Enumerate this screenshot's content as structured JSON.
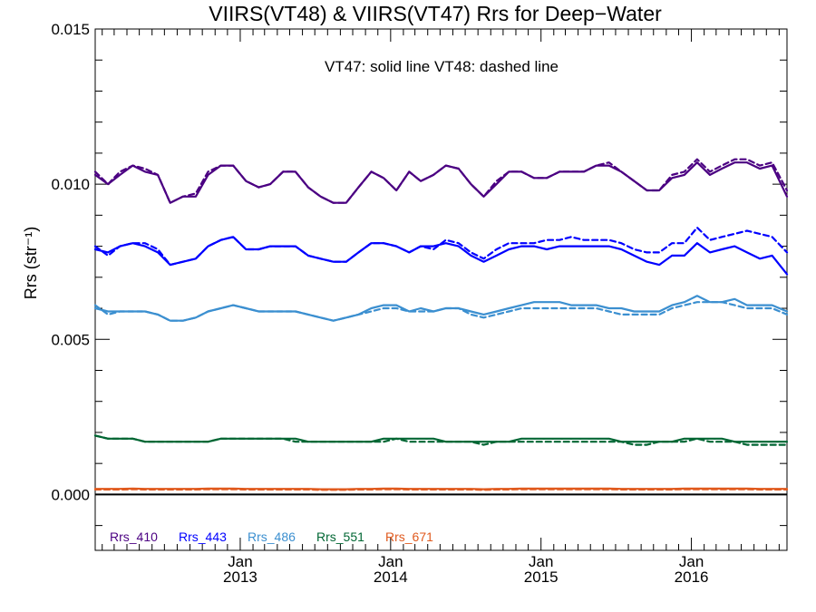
{
  "chart_data": {
    "type": "line",
    "title": "VIIRS(VT48) & VIIRS(VT47)  Rrs for Deep−Water",
    "annotation": "VT47: solid line   VT48: dashed line",
    "ylabel": "Rrs (str⁻¹)",
    "xlabel": "",
    "ylim": [
      -0.0018,
      0.015
    ],
    "yticks": [
      0.0,
      0.005,
      0.01,
      0.015
    ],
    "ytick_labels": [
      "0.000",
      "0.005",
      "0.010",
      "0.015"
    ],
    "xlim": [
      "2012-01-15",
      "2016-08-20"
    ],
    "xticks": [
      "2013-01-01",
      "2014-01-01",
      "2015-01-01",
      "2016-01-01"
    ],
    "xtick_labels": [
      [
        "Jan",
        "2013"
      ],
      [
        "Jan",
        "2014"
      ],
      [
        "Jan",
        "2015"
      ],
      [
        "Jan",
        "2016"
      ]
    ],
    "zero_line": true,
    "legend_position": "bottom-left",
    "x": [
      "2012-01-15",
      "2012-02-15",
      "2012-03-15",
      "2012-04-15",
      "2012-05-15",
      "2012-06-15",
      "2012-07-15",
      "2012-08-15",
      "2012-09-15",
      "2012-10-15",
      "2012-11-15",
      "2012-12-15",
      "2013-01-15",
      "2013-02-15",
      "2013-03-15",
      "2013-04-15",
      "2013-05-15",
      "2013-06-15",
      "2013-07-15",
      "2013-08-15",
      "2013-09-15",
      "2013-10-15",
      "2013-11-15",
      "2013-12-15",
      "2014-01-15",
      "2014-02-15",
      "2014-03-15",
      "2014-04-15",
      "2014-05-15",
      "2014-06-15",
      "2014-07-15",
      "2014-08-15",
      "2014-09-15",
      "2014-10-15",
      "2014-11-15",
      "2014-12-15",
      "2015-01-15",
      "2015-02-15",
      "2015-03-15",
      "2015-04-15",
      "2015-05-15",
      "2015-06-15",
      "2015-07-15",
      "2015-08-15",
      "2015-09-15",
      "2015-10-15",
      "2015-11-15",
      "2015-12-15",
      "2016-01-15",
      "2016-02-15",
      "2016-03-15",
      "2016-04-15",
      "2016-05-15",
      "2016-06-15",
      "2016-07-15",
      "2016-08-20"
    ],
    "series": [
      {
        "name": "Rrs_410",
        "color": "#4b0082",
        "VT47": [
          0.0103,
          0.01,
          0.0103,
          0.0106,
          0.0104,
          0.0103,
          0.0094,
          0.0096,
          0.0096,
          0.0103,
          0.0106,
          0.0106,
          0.0101,
          0.0099,
          0.01,
          0.0104,
          0.0104,
          0.0099,
          0.0096,
          0.0094,
          0.0094,
          0.0099,
          0.0104,
          0.0102,
          0.0098,
          0.0104,
          0.0101,
          0.0103,
          0.0106,
          0.0105,
          0.01,
          0.0096,
          0.01,
          0.0104,
          0.0104,
          0.0102,
          0.0102,
          0.0104,
          0.0104,
          0.0104,
          0.0106,
          0.0106,
          0.0104,
          0.0101,
          0.0098,
          0.0098,
          0.0102,
          0.0103,
          0.0107,
          0.0103,
          0.0105,
          0.0107,
          0.0107,
          0.0105,
          0.0106,
          0.0096
        ],
        "VT48": [
          0.0104,
          0.01,
          0.0104,
          0.0106,
          0.0105,
          0.0103,
          0.0094,
          0.0096,
          0.0097,
          0.0104,
          0.0106,
          0.0106,
          0.0101,
          0.0099,
          0.01,
          0.0104,
          0.0104,
          0.0099,
          0.0096,
          0.0094,
          0.0094,
          0.0099,
          0.0104,
          0.0102,
          0.0098,
          0.0104,
          0.0101,
          0.0103,
          0.0106,
          0.0105,
          0.01,
          0.0096,
          0.0101,
          0.0104,
          0.0104,
          0.0102,
          0.0102,
          0.0104,
          0.0104,
          0.0104,
          0.0106,
          0.0107,
          0.0104,
          0.0101,
          0.0098,
          0.0098,
          0.0103,
          0.0104,
          0.0108,
          0.0104,
          0.0106,
          0.0108,
          0.0108,
          0.0106,
          0.0107,
          0.0098
        ]
      },
      {
        "name": "Rrs_443",
        "color": "#0000ff",
        "VT47": [
          0.0079,
          0.0078,
          0.008,
          0.0081,
          0.008,
          0.0078,
          0.0074,
          0.0075,
          0.0076,
          0.008,
          0.0082,
          0.0083,
          0.0079,
          0.0079,
          0.008,
          0.008,
          0.008,
          0.0077,
          0.0076,
          0.0075,
          0.0075,
          0.0078,
          0.0081,
          0.0081,
          0.008,
          0.0078,
          0.008,
          0.008,
          0.0081,
          0.008,
          0.0077,
          0.0075,
          0.0077,
          0.0079,
          0.008,
          0.008,
          0.0079,
          0.008,
          0.008,
          0.008,
          0.008,
          0.008,
          0.0079,
          0.0077,
          0.0075,
          0.0074,
          0.0077,
          0.0077,
          0.0081,
          0.0078,
          0.0079,
          0.008,
          0.0078,
          0.0076,
          0.0077,
          0.0071
        ],
        "VT48": [
          0.008,
          0.0077,
          0.008,
          0.0081,
          0.0081,
          0.0079,
          0.0074,
          0.0075,
          0.0076,
          0.008,
          0.0082,
          0.0083,
          0.0079,
          0.0079,
          0.008,
          0.008,
          0.008,
          0.0077,
          0.0076,
          0.0075,
          0.0075,
          0.0078,
          0.0081,
          0.0081,
          0.008,
          0.0078,
          0.008,
          0.0079,
          0.0082,
          0.0081,
          0.0078,
          0.0076,
          0.0079,
          0.0081,
          0.0081,
          0.0081,
          0.0082,
          0.0082,
          0.0083,
          0.0082,
          0.0082,
          0.0082,
          0.0081,
          0.0079,
          0.0078,
          0.0078,
          0.0081,
          0.0081,
          0.0086,
          0.0082,
          0.0083,
          0.0084,
          0.0085,
          0.0084,
          0.0083,
          0.0078
        ]
      },
      {
        "name": "Rrs_486",
        "color": "#3b8fd0",
        "VT47": [
          0.006,
          0.0059,
          0.0059,
          0.0059,
          0.0059,
          0.0058,
          0.0056,
          0.0056,
          0.0057,
          0.0059,
          0.006,
          0.0061,
          0.006,
          0.0059,
          0.0059,
          0.0059,
          0.0059,
          0.0058,
          0.0057,
          0.0056,
          0.0057,
          0.0058,
          0.006,
          0.0061,
          0.0061,
          0.0059,
          0.006,
          0.0059,
          0.006,
          0.006,
          0.0059,
          0.0058,
          0.0059,
          0.006,
          0.0061,
          0.0062,
          0.0062,
          0.0062,
          0.0061,
          0.0061,
          0.0061,
          0.006,
          0.006,
          0.0059,
          0.0059,
          0.0059,
          0.0061,
          0.0062,
          0.0064,
          0.0062,
          0.0062,
          0.0063,
          0.0061,
          0.0061,
          0.0061,
          0.0059
        ],
        "VT48": [
          0.0061,
          0.0058,
          0.0059,
          0.0059,
          0.0059,
          0.0058,
          0.0056,
          0.0056,
          0.0057,
          0.0059,
          0.006,
          0.0061,
          0.006,
          0.0059,
          0.0059,
          0.0059,
          0.0059,
          0.0058,
          0.0057,
          0.0056,
          0.0057,
          0.0058,
          0.0059,
          0.006,
          0.006,
          0.0059,
          0.0059,
          0.0059,
          0.006,
          0.006,
          0.0058,
          0.0057,
          0.0058,
          0.0059,
          0.006,
          0.006,
          0.006,
          0.006,
          0.006,
          0.006,
          0.006,
          0.0059,
          0.0058,
          0.0058,
          0.0058,
          0.0058,
          0.006,
          0.0061,
          0.0062,
          0.0062,
          0.0062,
          0.0061,
          0.006,
          0.006,
          0.006,
          0.0058
        ]
      },
      {
        "name": "Rrs_551",
        "color": "#006633",
        "VT47": [
          0.0019,
          0.0018,
          0.0018,
          0.0018,
          0.0017,
          0.0017,
          0.0017,
          0.0017,
          0.0017,
          0.0017,
          0.0018,
          0.0018,
          0.0018,
          0.0018,
          0.0018,
          0.0018,
          0.0018,
          0.0017,
          0.0017,
          0.0017,
          0.0017,
          0.0017,
          0.0017,
          0.0018,
          0.0018,
          0.0018,
          0.0018,
          0.0018,
          0.0017,
          0.0017,
          0.0017,
          0.0017,
          0.0017,
          0.0017,
          0.0018,
          0.0018,
          0.0018,
          0.0018,
          0.0018,
          0.0018,
          0.0018,
          0.0018,
          0.0017,
          0.0017,
          0.0017,
          0.0017,
          0.0017,
          0.0018,
          0.0018,
          0.0018,
          0.0018,
          0.0017,
          0.0017,
          0.0017,
          0.0017,
          0.0017
        ],
        "VT48": [
          0.0019,
          0.0018,
          0.0018,
          0.0018,
          0.0017,
          0.0017,
          0.0017,
          0.0017,
          0.0017,
          0.0017,
          0.0018,
          0.0018,
          0.0018,
          0.0018,
          0.0018,
          0.0018,
          0.0017,
          0.0017,
          0.0017,
          0.0017,
          0.0017,
          0.0017,
          0.0017,
          0.0017,
          0.0018,
          0.0017,
          0.0017,
          0.0017,
          0.0017,
          0.0017,
          0.0017,
          0.0016,
          0.0017,
          0.0017,
          0.0017,
          0.0017,
          0.0017,
          0.0017,
          0.0017,
          0.0017,
          0.0017,
          0.0017,
          0.0017,
          0.0016,
          0.0016,
          0.0017,
          0.0017,
          0.0017,
          0.0018,
          0.0017,
          0.0017,
          0.0017,
          0.0016,
          0.0016,
          0.0016,
          0.0016
        ]
      },
      {
        "name": "Rrs_671",
        "color": "#e05a1e",
        "VT47": [
          0.00018,
          0.00018,
          0.00018,
          0.00019,
          0.00018,
          0.00018,
          0.00018,
          0.00018,
          0.00018,
          0.00019,
          0.00019,
          0.00019,
          0.00018,
          0.00018,
          0.00018,
          0.00018,
          0.00018,
          0.00018,
          0.00017,
          0.00017,
          0.00017,
          0.00018,
          0.00018,
          0.00019,
          0.00019,
          0.00018,
          0.00018,
          0.00018,
          0.00018,
          0.00018,
          0.00018,
          0.00017,
          0.00018,
          0.00018,
          0.00019,
          0.00019,
          0.00019,
          0.00019,
          0.00019,
          0.00019,
          0.00019,
          0.00019,
          0.00018,
          0.00018,
          0.00018,
          0.00018,
          0.00018,
          0.00019,
          0.00019,
          0.00019,
          0.00019,
          0.00019,
          0.00019,
          0.00018,
          0.00018,
          0.00018
        ],
        "VT48": [
          0.00016,
          0.00016,
          0.00016,
          0.00017,
          0.00016,
          0.00016,
          0.00016,
          0.00016,
          0.00016,
          0.00017,
          0.00017,
          0.00017,
          0.00016,
          0.00016,
          0.00016,
          0.00016,
          0.00016,
          0.00016,
          0.00015,
          0.00015,
          0.00015,
          0.00016,
          0.00016,
          0.00017,
          0.00017,
          0.00016,
          0.00016,
          0.00016,
          0.00016,
          0.00016,
          0.00016,
          0.00015,
          0.00016,
          0.00016,
          0.00017,
          0.00017,
          0.00017,
          0.00017,
          0.00017,
          0.00017,
          0.00017,
          0.00017,
          0.00016,
          0.00016,
          0.00016,
          0.00016,
          0.00016,
          0.00017,
          0.00017,
          0.00017,
          0.00017,
          0.00017,
          0.00017,
          0.00016,
          0.00016,
          0.00016
        ]
      }
    ]
  }
}
